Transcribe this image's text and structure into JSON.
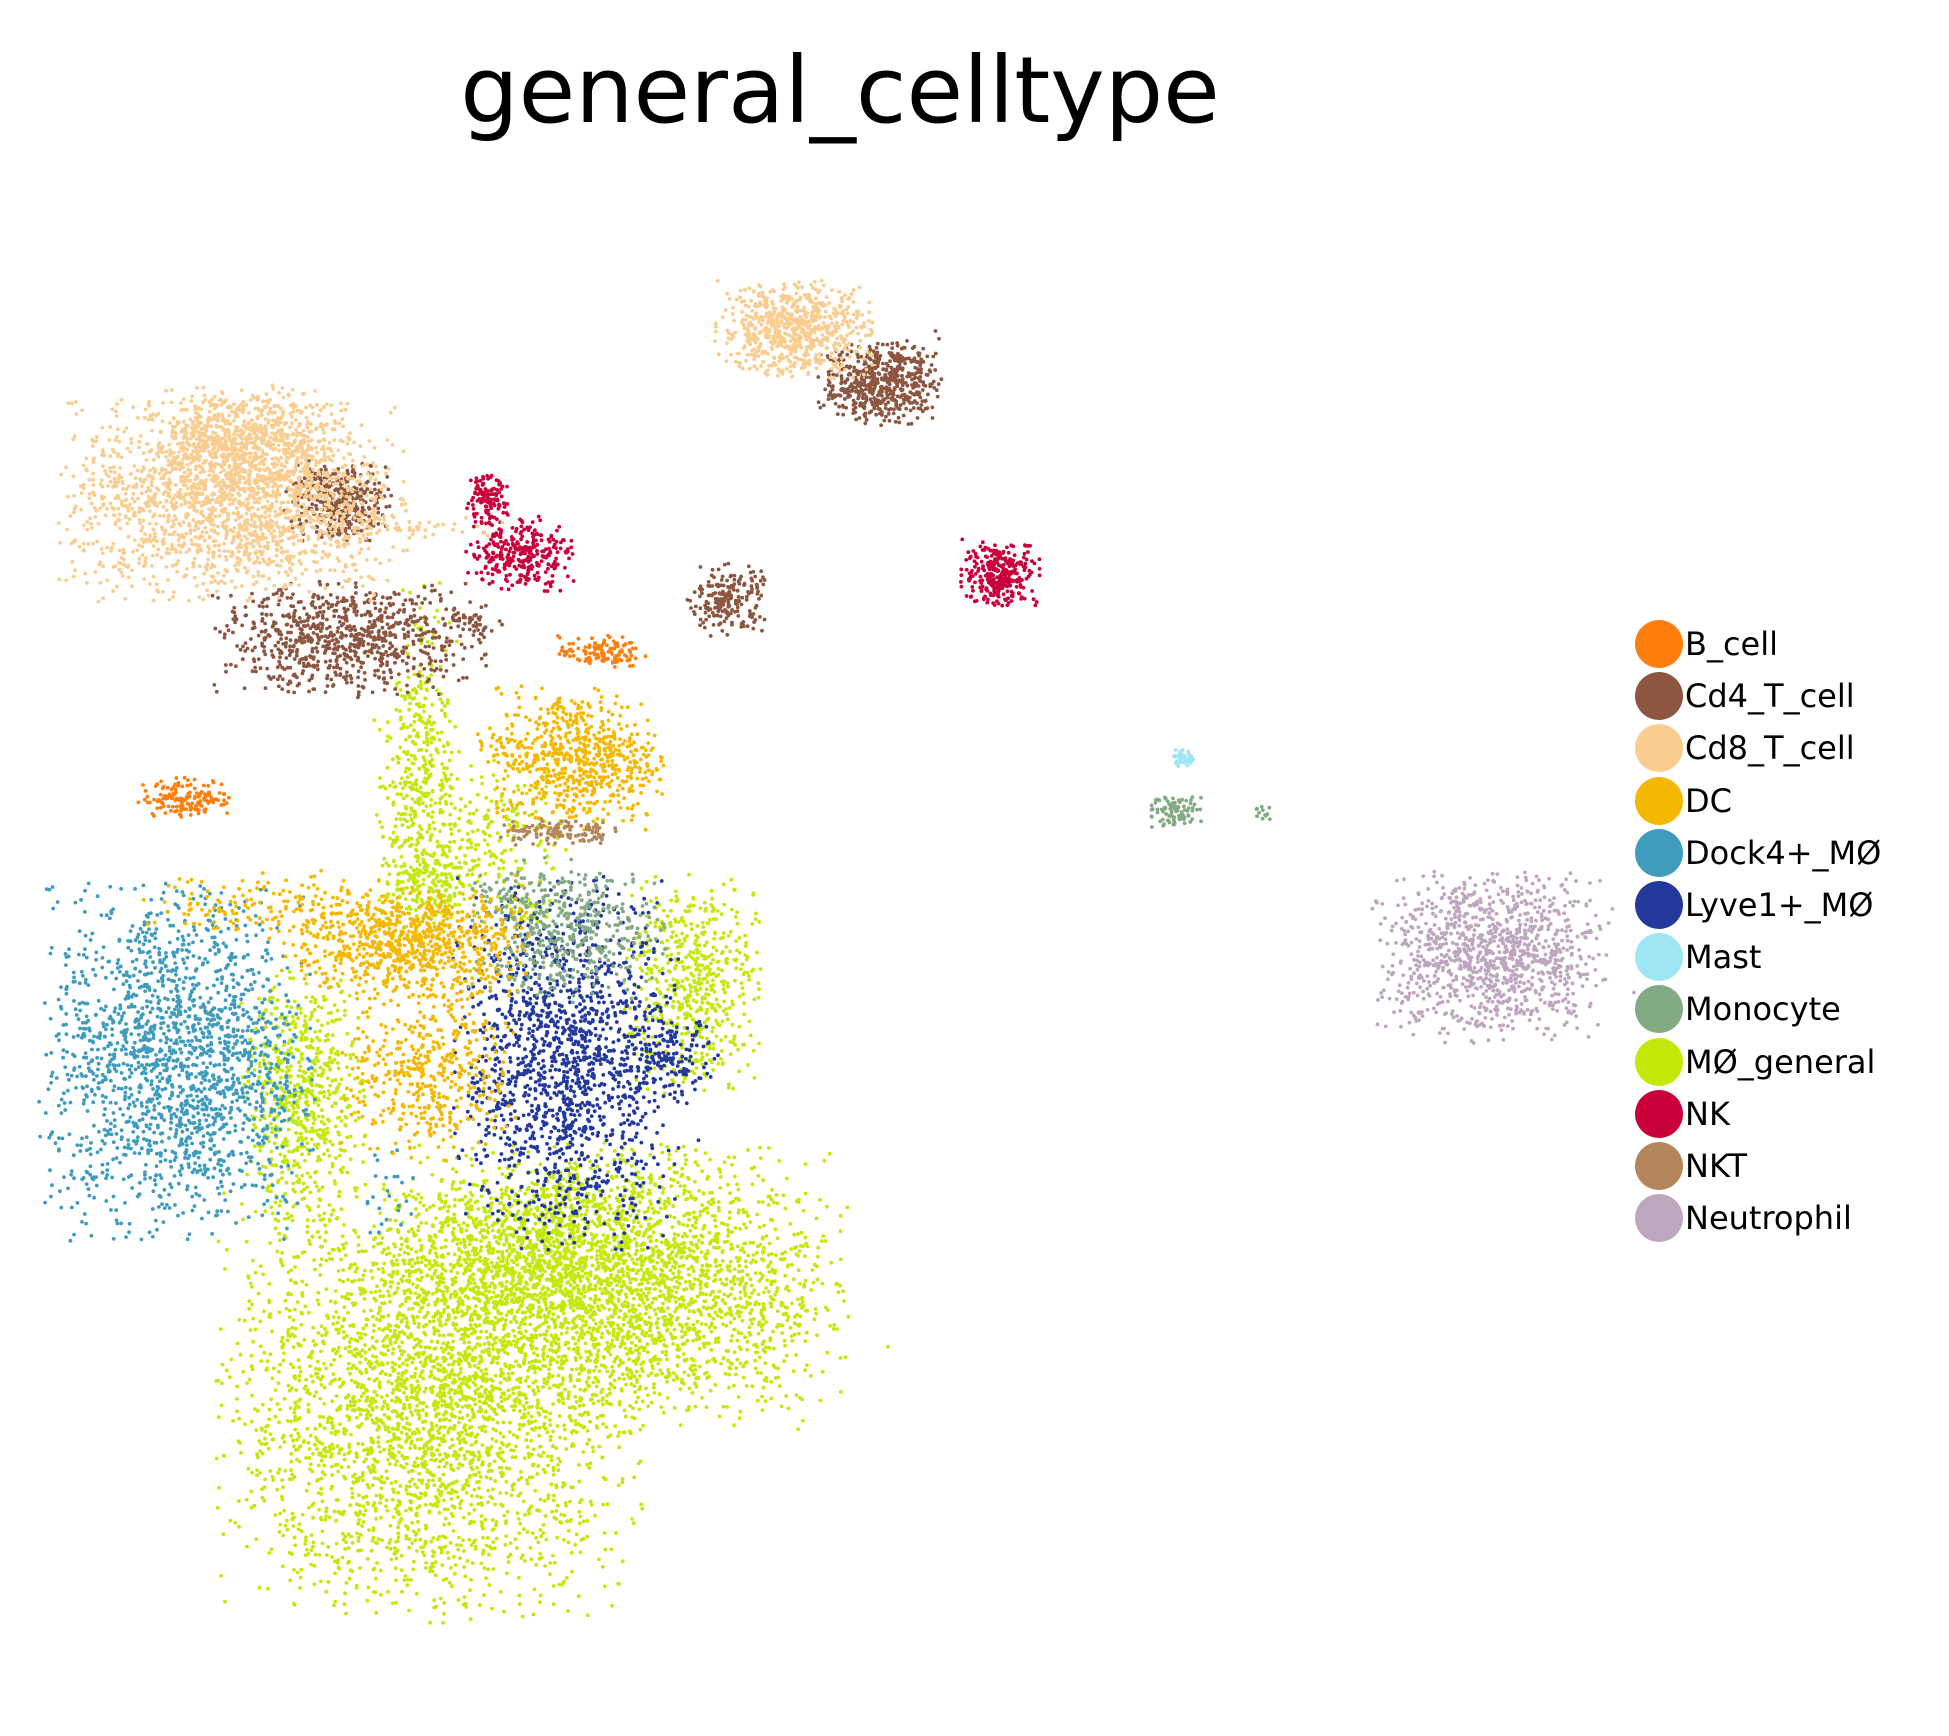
{
  "chart_data": {
    "type": "scatter",
    "title": "general_celltype",
    "xlabel": "",
    "ylabel": "",
    "grid": false,
    "axes_visible": false,
    "legend_placement": "right",
    "categories": [
      "B_cell",
      "Cd4_T_cell",
      "Cd8_T_cell",
      "DC",
      "Dock4+_MØ",
      "Lyve1+_MØ",
      "Mast",
      "Monocyte",
      "MØ_general",
      "NK",
      "NKT",
      "Neutrophil"
    ],
    "colors": {
      "B_cell": "#ff7f0e",
      "Cd4_T_cell": "#8c5641",
      "Cd8_T_cell": "#f9cd8f",
      "DC": "#f5b800",
      "Dock4+_MØ": "#409cbc",
      "Lyve1+_MØ": "#233a9c",
      "Mast": "#9fe6f4",
      "Monocyte": "#82aa83",
      "MØ_general": "#c4e80a",
      "NK": "#c9003a",
      "NKT": "#b4865b",
      "Neutrophil": "#bfa6bf"
    },
    "clusters": [
      {
        "celltype": "MØ_general",
        "cx": 0.27,
        "cy": 0.17,
        "sx": 0.085,
        "sy": 0.075,
        "n": 3000
      },
      {
        "celltype": "MØ_general",
        "cx": 0.44,
        "cy": 0.26,
        "sx": 0.09,
        "sy": 0.05,
        "n": 2600
      },
      {
        "celltype": "MØ_general",
        "cx": 0.36,
        "cy": 0.29,
        "sx": 0.07,
        "sy": 0.03,
        "n": 700
      },
      {
        "celltype": "MØ_general",
        "cx": 0.16,
        "cy": 0.4,
        "sx": 0.025,
        "sy": 0.045,
        "n": 650
      },
      {
        "celltype": "MØ_general",
        "cx": 0.5,
        "cy": 0.49,
        "sx": 0.028,
        "sy": 0.04,
        "n": 550
      },
      {
        "celltype": "MØ_general",
        "cx": 0.26,
        "cy": 0.62,
        "sx": 0.018,
        "sy": 0.05,
        "n": 350
      },
      {
        "celltype": "MØ_general",
        "cx": 0.27,
        "cy": 0.565,
        "sx": 0.02,
        "sy": 0.012,
        "n": 150
      },
      {
        "celltype": "MØ_general",
        "cx": 0.33,
        "cy": 0.61,
        "sx": 0.03,
        "sy": 0.025,
        "n": 200
      },
      {
        "celltype": "MØ_general",
        "cx": 0.265,
        "cy": 0.71,
        "sx": 0.012,
        "sy": 0.04,
        "n": 100
      },
      {
        "celltype": "MØ_general",
        "cx": 0.36,
        "cy": 0.545,
        "sx": 0.01,
        "sy": 0.006,
        "n": 30
      },
      {
        "celltype": "Dock4+_MØ",
        "cx": 0.05,
        "cy": 0.43,
        "sx": 0.055,
        "sy": 0.062,
        "n": 1800
      },
      {
        "celltype": "Dock4+_MØ",
        "cx": 0.23,
        "cy": 0.33,
        "sx": 0.015,
        "sy": 0.02,
        "n": 25
      },
      {
        "celltype": "Lyve1+_MØ",
        "cx": 0.39,
        "cy": 0.43,
        "sx": 0.045,
        "sy": 0.065,
        "n": 1500
      },
      {
        "celltype": "Lyve1+_MØ",
        "cx": 0.48,
        "cy": 0.43,
        "sx": 0.02,
        "sy": 0.015,
        "n": 150
      },
      {
        "celltype": "Monocyte",
        "cx": 0.39,
        "cy": 0.53,
        "sx": 0.04,
        "sy": 0.025,
        "n": 450
      },
      {
        "celltype": "Monocyte",
        "cx": 0.34,
        "cy": 0.55,
        "sx": 0.006,
        "sy": 0.006,
        "n": 15
      },
      {
        "celltype": "Monocyte",
        "cx": 0.32,
        "cy": 0.56,
        "sx": 0.006,
        "sy": 0.006,
        "n": 12
      },
      {
        "celltype": "Monocyte",
        "cx": 0.92,
        "cy": 0.62,
        "sx": 0.013,
        "sy": 0.006,
        "n": 90
      },
      {
        "celltype": "Monocyte",
        "cx": 1.0,
        "cy": 0.62,
        "sx": 0.004,
        "sy": 0.003,
        "n": 12
      },
      {
        "celltype": "DC",
        "cx": 0.25,
        "cy": 0.52,
        "sx": 0.05,
        "sy": 0.02,
        "n": 800
      },
      {
        "celltype": "DC",
        "cx": 0.13,
        "cy": 0.55,
        "sx": 0.05,
        "sy": 0.012,
        "n": 150
      },
      {
        "celltype": "DC",
        "cx": 0.27,
        "cy": 0.42,
        "sx": 0.035,
        "sy": 0.03,
        "n": 450
      },
      {
        "celltype": "DC",
        "cx": 0.4,
        "cy": 0.66,
        "sx": 0.035,
        "sy": 0.025,
        "n": 650
      },
      {
        "celltype": "DC",
        "cx": 0.33,
        "cy": 0.67,
        "sx": 0.01,
        "sy": 0.006,
        "n": 25
      },
      {
        "celltype": "B_cell",
        "cx": 0.42,
        "cy": 0.74,
        "sx": 0.018,
        "sy": 0.006,
        "n": 120
      },
      {
        "celltype": "B_cell",
        "cx": 0.06,
        "cy": 0.63,
        "sx": 0.02,
        "sy": 0.007,
        "n": 150
      },
      {
        "celltype": "NKT",
        "cx": 0.38,
        "cy": 0.605,
        "sx": 0.025,
        "sy": 0.005,
        "n": 120
      },
      {
        "celltype": "Mast",
        "cx": 0.93,
        "cy": 0.66,
        "sx": 0.005,
        "sy": 0.003,
        "n": 40
      },
      {
        "celltype": "Neutrophil",
        "cx": 1.2,
        "cy": 0.51,
        "sx": 0.048,
        "sy": 0.03,
        "n": 1100
      },
      {
        "celltype": "NK",
        "cx": 0.35,
        "cy": 0.815,
        "sx": 0.022,
        "sy": 0.013,
        "n": 300
      },
      {
        "celltype": "NK",
        "cx": 0.32,
        "cy": 0.855,
        "sx": 0.009,
        "sy": 0.009,
        "n": 120
      },
      {
        "celltype": "NK",
        "cx": 0.77,
        "cy": 0.8,
        "sx": 0.016,
        "sy": 0.012,
        "n": 300
      },
      {
        "celltype": "Cd4_T_cell",
        "cx": 0.2,
        "cy": 0.75,
        "sx": 0.055,
        "sy": 0.02,
        "n": 800
      },
      {
        "celltype": "Cd4_T_cell",
        "cx": 0.19,
        "cy": 0.855,
        "sx": 0.022,
        "sy": 0.015,
        "n": 350
      },
      {
        "celltype": "Cd4_T_cell",
        "cx": 0.53,
        "cy": 0.78,
        "sx": 0.016,
        "sy": 0.013,
        "n": 200
      },
      {
        "celltype": "Cd4_T_cell",
        "cx": 0.665,
        "cy": 0.945,
        "sx": 0.025,
        "sy": 0.015,
        "n": 550
      },
      {
        "celltype": "Cd4_T_cell",
        "cx": 0.31,
        "cy": 0.765,
        "sx": 0.012,
        "sy": 0.005,
        "n": 35
      },
      {
        "celltype": "Cd8_T_cell",
        "cx": 0.1,
        "cy": 0.855,
        "sx": 0.07,
        "sy": 0.035,
        "n": 1900
      },
      {
        "celltype": "Cd8_T_cell",
        "cx": 0.11,
        "cy": 0.9,
        "sx": 0.04,
        "sy": 0.02,
        "n": 600
      },
      {
        "celltype": "Cd8_T_cell",
        "cx": 0.59,
        "cy": 0.985,
        "sx": 0.032,
        "sy": 0.017,
        "n": 700
      },
      {
        "celltype": "Cd8_T_cell",
        "cx": 0.25,
        "cy": 0.835,
        "sx": 0.04,
        "sy": 0.004,
        "n": 40
      }
    ]
  },
  "legend": [
    {
      "label": "B_cell",
      "color": "#ff7f0e"
    },
    {
      "label": "Cd4_T_cell",
      "color": "#8c5641"
    },
    {
      "label": "Cd8_T_cell",
      "color": "#f9cd8f"
    },
    {
      "label": "DC",
      "color": "#f5b800"
    },
    {
      "label": "Dock4+_MØ",
      "color": "#409cbc"
    },
    {
      "label": "Lyve1+_MØ",
      "color": "#233a9c"
    },
    {
      "label": "Mast",
      "color": "#9fe6f4"
    },
    {
      "label": "Monocyte",
      "color": "#82aa83"
    },
    {
      "label": "MØ_general",
      "color": "#c4e80a"
    },
    {
      "label": "NK",
      "color": "#c9003a"
    },
    {
      "label": "NKT",
      "color": "#b4865b"
    },
    {
      "label": "Neutrophil",
      "color": "#bfa6bf"
    }
  ]
}
